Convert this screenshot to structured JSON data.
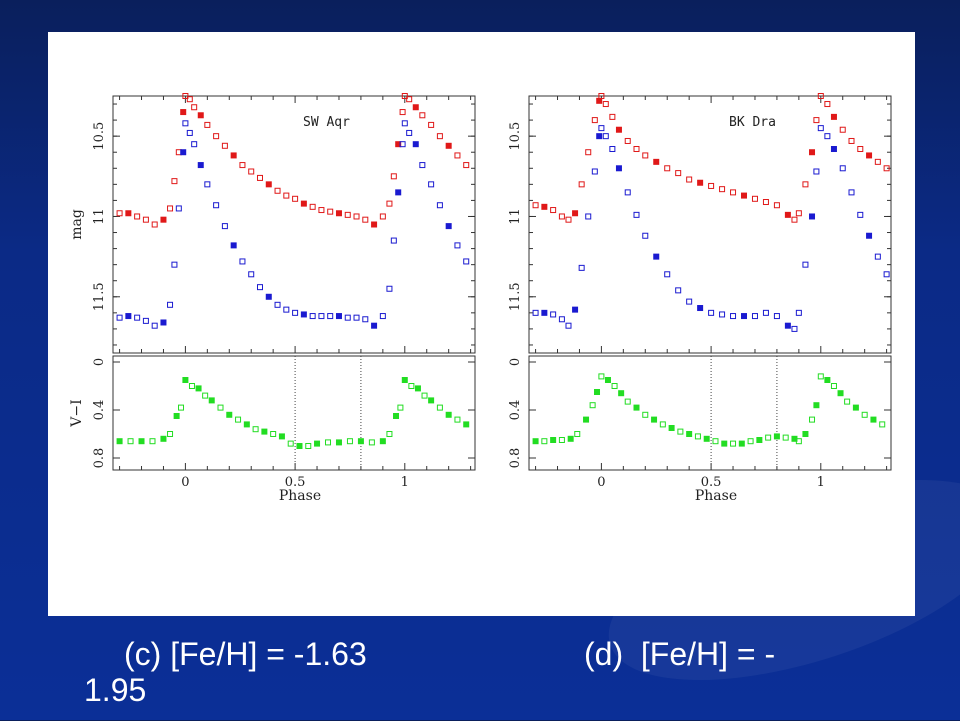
{
  "caption": {
    "line1_left": "(c) [Fe/H] = -1.63",
    "line1_right": "(d)  [Fe/H] = -",
    "line2": "1.95"
  },
  "colors": {
    "V_band": "#e01818",
    "I_band": "#1a1ad0",
    "color_index": "#22dd22"
  },
  "chart_data": [
    {
      "type": "scatter",
      "panel": "c",
      "star": "SW Aqr",
      "xlabel": "Phase",
      "top": {
        "ylabel": "mag",
        "ylim": [
          11.85,
          10.25
        ],
        "yticks": [
          "10.5",
          "11",
          "11.5"
        ],
        "series": [
          {
            "band": "V",
            "x": [
              -0.3,
              -0.26,
              -0.22,
              -0.18,
              -0.14,
              -0.1,
              -0.07,
              -0.05,
              -0.03,
              -0.01,
              0.0,
              0.02,
              0.04,
              0.07,
              0.1,
              0.14,
              0.18,
              0.22,
              0.26,
              0.3,
              0.34,
              0.38,
              0.42,
              0.46,
              0.5,
              0.54,
              0.58,
              0.62,
              0.66,
              0.7,
              0.74,
              0.78,
              0.82,
              0.86,
              0.9,
              0.93,
              0.95,
              0.97,
              0.99,
              1.0,
              1.02,
              1.05,
              1.08,
              1.12,
              1.16,
              1.2,
              1.24,
              1.28
            ],
            "y": [
              10.98,
              10.98,
              11.0,
              11.02,
              11.05,
              11.02,
              10.95,
              10.78,
              10.6,
              10.35,
              10.25,
              10.27,
              10.32,
              10.37,
              10.43,
              10.5,
              10.56,
              10.62,
              10.68,
              10.72,
              10.76,
              10.8,
              10.84,
              10.87,
              10.89,
              10.92,
              10.94,
              10.96,
              10.97,
              10.98,
              10.99,
              11.0,
              11.02,
              11.05,
              11.0,
              10.92,
              10.75,
              10.55,
              10.35,
              10.25,
              10.27,
              10.32,
              10.37,
              10.43,
              10.5,
              10.56,
              10.62,
              10.68
            ]
          },
          {
            "band": "I",
            "x": [
              -0.3,
              -0.26,
              -0.22,
              -0.18,
              -0.14,
              -0.1,
              -0.07,
              -0.05,
              -0.03,
              -0.01,
              0.0,
              0.02,
              0.04,
              0.07,
              0.1,
              0.14,
              0.18,
              0.22,
              0.26,
              0.3,
              0.34,
              0.38,
              0.42,
              0.46,
              0.5,
              0.54,
              0.58,
              0.62,
              0.66,
              0.7,
              0.74,
              0.78,
              0.82,
              0.86,
              0.9,
              0.93,
              0.95,
              0.97,
              0.99,
              1.0,
              1.02,
              1.05,
              1.08,
              1.12,
              1.16,
              1.2,
              1.24,
              1.28
            ],
            "y": [
              11.63,
              11.62,
              11.63,
              11.65,
              11.68,
              11.66,
              11.55,
              11.3,
              10.95,
              10.6,
              10.42,
              10.48,
              10.55,
              10.68,
              10.8,
              10.93,
              11.06,
              11.18,
              11.28,
              11.36,
              11.44,
              11.5,
              11.55,
              11.58,
              11.6,
              11.61,
              11.62,
              11.62,
              11.62,
              11.62,
              11.63,
              11.63,
              11.64,
              11.68,
              11.62,
              11.45,
              11.15,
              10.85,
              10.55,
              10.42,
              10.48,
              10.55,
              10.68,
              10.8,
              10.93,
              11.06,
              11.18,
              11.28
            ]
          }
        ]
      },
      "bottom": {
        "ylabel": "V−I",
        "ylim": [
          0.9,
          -0.05
        ],
        "yticks": [
          "0",
          "0.4",
          "0.8"
        ],
        "x": [
          -0.3,
          -0.25,
          -0.2,
          -0.15,
          -0.1,
          -0.07,
          -0.04,
          -0.02,
          0.0,
          0.03,
          0.06,
          0.09,
          0.12,
          0.16,
          0.2,
          0.24,
          0.28,
          0.32,
          0.36,
          0.4,
          0.44,
          0.48,
          0.52,
          0.56,
          0.6,
          0.65,
          0.7,
          0.75,
          0.8,
          0.85,
          0.9,
          0.93,
          0.96,
          0.98,
          1.0,
          1.03,
          1.06,
          1.09,
          1.12,
          1.16,
          1.2,
          1.24,
          1.28
        ],
        "y": [
          0.66,
          0.66,
          0.66,
          0.66,
          0.64,
          0.6,
          0.45,
          0.38,
          0.15,
          0.2,
          0.22,
          0.28,
          0.32,
          0.38,
          0.44,
          0.48,
          0.52,
          0.56,
          0.58,
          0.6,
          0.62,
          0.68,
          0.7,
          0.7,
          0.68,
          0.67,
          0.67,
          0.66,
          0.66,
          0.67,
          0.66,
          0.6,
          0.45,
          0.38,
          0.15,
          0.2,
          0.22,
          0.28,
          0.32,
          0.38,
          0.44,
          0.48,
          0.52
        ]
      },
      "xlim": [
        -0.33,
        1.32
      ],
      "xticks": [
        "0",
        "0.5",
        "1"
      ],
      "vlines": [
        0.5,
        0.8
      ]
    },
    {
      "type": "scatter",
      "panel": "d",
      "star": "BK Dra",
      "xlabel": "Phase",
      "top": {
        "ylabel": "",
        "ylim": [
          11.85,
          10.25
        ],
        "yticks": [
          "10.5",
          "11",
          "11.5"
        ],
        "series": [
          {
            "band": "V",
            "x": [
              -0.3,
              -0.26,
              -0.22,
              -0.18,
              -0.15,
              -0.12,
              -0.09,
              -0.06,
              -0.03,
              -0.01,
              0.0,
              0.02,
              0.05,
              0.08,
              0.12,
              0.16,
              0.2,
              0.25,
              0.3,
              0.35,
              0.4,
              0.45,
              0.5,
              0.55,
              0.6,
              0.65,
              0.7,
              0.75,
              0.8,
              0.85,
              0.88,
              0.9,
              0.93,
              0.96,
              0.98,
              1.0,
              1.03,
              1.06,
              1.1,
              1.14,
              1.18,
              1.22,
              1.26,
              1.3
            ],
            "y": [
              10.93,
              10.94,
              10.96,
              11.0,
              11.02,
              10.98,
              10.8,
              10.6,
              10.4,
              10.28,
              10.25,
              10.3,
              10.38,
              10.46,
              10.53,
              10.58,
              10.62,
              10.66,
              10.7,
              10.73,
              10.77,
              10.79,
              10.81,
              10.83,
              10.85,
              10.87,
              10.89,
              10.91,
              10.93,
              10.99,
              11.02,
              10.98,
              10.8,
              10.6,
              10.4,
              10.25,
              10.3,
              10.38,
              10.46,
              10.53,
              10.58,
              10.62,
              10.66,
              10.7
            ]
          },
          {
            "band": "I",
            "x": [
              -0.3,
              -0.26,
              -0.22,
              -0.18,
              -0.15,
              -0.12,
              -0.09,
              -0.06,
              -0.03,
              -0.01,
              0.0,
              0.02,
              0.05,
              0.08,
              0.12,
              0.16,
              0.2,
              0.25,
              0.3,
              0.35,
              0.4,
              0.45,
              0.5,
              0.55,
              0.6,
              0.65,
              0.7,
              0.75,
              0.8,
              0.85,
              0.88,
              0.9,
              0.93,
              0.96,
              0.98,
              1.0,
              1.03,
              1.06,
              1.1,
              1.14,
              1.18,
              1.22,
              1.26,
              1.3
            ],
            "y": [
              11.6,
              11.6,
              11.61,
              11.64,
              11.68,
              11.58,
              11.32,
              11.0,
              10.72,
              10.5,
              10.45,
              10.5,
              10.58,
              10.7,
              10.85,
              10.99,
              11.12,
              11.25,
              11.36,
              11.46,
              11.53,
              11.57,
              11.6,
              11.61,
              11.62,
              11.62,
              11.62,
              11.6,
              11.62,
              11.68,
              11.7,
              11.6,
              11.3,
              11.0,
              10.72,
              10.45,
              10.5,
              10.58,
              10.7,
              10.85,
              10.99,
              11.12,
              11.25,
              11.36
            ]
          }
        ]
      },
      "bottom": {
        "ylabel": "",
        "ylim": [
          0.9,
          -0.05
        ],
        "yticks": [
          "0",
          "0.4",
          "0.8"
        ],
        "x": [
          -0.3,
          -0.26,
          -0.22,
          -0.18,
          -0.14,
          -0.11,
          -0.07,
          -0.04,
          -0.02,
          0.0,
          0.03,
          0.06,
          0.09,
          0.12,
          0.16,
          0.2,
          0.24,
          0.28,
          0.32,
          0.36,
          0.4,
          0.44,
          0.48,
          0.52,
          0.56,
          0.6,
          0.64,
          0.68,
          0.72,
          0.76,
          0.8,
          0.84,
          0.88,
          0.9,
          0.93,
          0.96,
          0.98,
          1.0,
          1.03,
          1.06,
          1.09,
          1.12,
          1.16,
          1.2,
          1.24,
          1.28
        ],
        "y": [
          0.66,
          0.66,
          0.65,
          0.65,
          0.64,
          0.6,
          0.48,
          0.36,
          0.25,
          0.12,
          0.15,
          0.2,
          0.26,
          0.33,
          0.38,
          0.44,
          0.48,
          0.52,
          0.55,
          0.58,
          0.6,
          0.62,
          0.64,
          0.66,
          0.68,
          0.68,
          0.68,
          0.66,
          0.65,
          0.63,
          0.62,
          0.63,
          0.64,
          0.66,
          0.6,
          0.48,
          0.36,
          0.12,
          0.15,
          0.2,
          0.26,
          0.33,
          0.38,
          0.44,
          0.48,
          0.52
        ]
      },
      "xlim": [
        -0.33,
        1.32
      ],
      "xticks": [
        "0",
        "0.5",
        "1"
      ],
      "vlines": [
        0.5,
        0.8
      ]
    }
  ]
}
